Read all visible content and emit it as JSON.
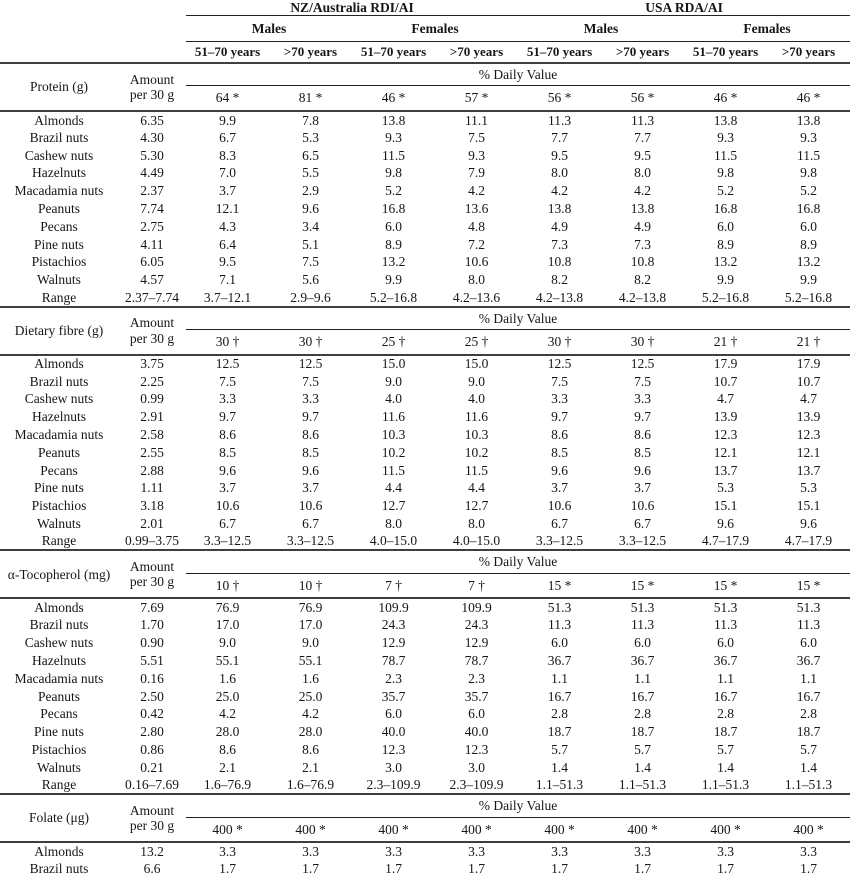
{
  "table": {
    "columns": {
      "amount_label": "Amount per 30 g",
      "daily_value_label": "% Daily Value"
    },
    "region_groups": [
      "NZ/Australia RDI/AI",
      "USA RDA/AI"
    ],
    "sex_groups": [
      "Males",
      "Females",
      "Males",
      "Females"
    ],
    "age_columns": [
      "51–70 years",
      ">70 years",
      "51–70 years",
      ">70 years",
      "51–70 years",
      ">70 years",
      "51–70 years",
      ">70 years"
    ],
    "sections": [
      {
        "nutrient": "Protein (g)",
        "reference_values": [
          "64 *",
          "81 *",
          "46 *",
          "57 *",
          "56 *",
          "56 *",
          "46 *",
          "46 *"
        ],
        "rows": [
          {
            "name": "Almonds",
            "amount": "6.35",
            "values": [
              "9.9",
              "7.8",
              "13.8",
              "11.1",
              "11.3",
              "11.3",
              "13.8",
              "13.8"
            ]
          },
          {
            "name": "Brazil nuts",
            "amount": "4.30",
            "values": [
              "6.7",
              "5.3",
              "9.3",
              "7.5",
              "7.7",
              "7.7",
              "9.3",
              "9.3"
            ]
          },
          {
            "name": "Cashew nuts",
            "amount": "5.30",
            "values": [
              "8.3",
              "6.5",
              "11.5",
              "9.3",
              "9.5",
              "9.5",
              "11.5",
              "11.5"
            ]
          },
          {
            "name": "Hazelnuts",
            "amount": "4.49",
            "values": [
              "7.0",
              "5.5",
              "9.8",
              "7.9",
              "8.0",
              "8.0",
              "9.8",
              "9.8"
            ]
          },
          {
            "name": "Macadamia nuts",
            "amount": "2.37",
            "values": [
              "3.7",
              "2.9",
              "5.2",
              "4.2",
              "4.2",
              "4.2",
              "5.2",
              "5.2"
            ]
          },
          {
            "name": "Peanuts",
            "amount": "7.74",
            "values": [
              "12.1",
              "9.6",
              "16.8",
              "13.6",
              "13.8",
              "13.8",
              "16.8",
              "16.8"
            ]
          },
          {
            "name": "Pecans",
            "amount": "2.75",
            "values": [
              "4.3",
              "3.4",
              "6.0",
              "4.8",
              "4.9",
              "4.9",
              "6.0",
              "6.0"
            ]
          },
          {
            "name": "Pine nuts",
            "amount": "4.11",
            "values": [
              "6.4",
              "5.1",
              "8.9",
              "7.2",
              "7.3",
              "7.3",
              "8.9",
              "8.9"
            ]
          },
          {
            "name": "Pistachios",
            "amount": "6.05",
            "values": [
              "9.5",
              "7.5",
              "13.2",
              "10.6",
              "10.8",
              "10.8",
              "13.2",
              "13.2"
            ]
          },
          {
            "name": "Walnuts",
            "amount": "4.57",
            "values": [
              "7.1",
              "5.6",
              "9.9",
              "8.0",
              "8.2",
              "8.2",
              "9.9",
              "9.9"
            ]
          },
          {
            "name": "Range",
            "amount": "2.37–7.74",
            "values": [
              "3.7–12.1",
              "2.9–9.6",
              "5.2–16.8",
              "4.2–13.6",
              "4.2–13.8",
              "4.2–13.8",
              "5.2–16.8",
              "5.2–16.8"
            ]
          }
        ]
      },
      {
        "nutrient": "Dietary fibre (g)",
        "reference_values": [
          "30 †",
          "30 †",
          "25 †",
          "25 †",
          "30 †",
          "30 †",
          "21 †",
          "21 †"
        ],
        "rows": [
          {
            "name": "Almonds",
            "amount": "3.75",
            "values": [
              "12.5",
              "12.5",
              "15.0",
              "15.0",
              "12.5",
              "12.5",
              "17.9",
              "17.9"
            ]
          },
          {
            "name": "Brazil nuts",
            "amount": "2.25",
            "values": [
              "7.5",
              "7.5",
              "9.0",
              "9.0",
              "7.5",
              "7.5",
              "10.7",
              "10.7"
            ]
          },
          {
            "name": "Cashew nuts",
            "amount": "0.99",
            "values": [
              "3.3",
              "3.3",
              "4.0",
              "4.0",
              "3.3",
              "3.3",
              "4.7",
              "4.7"
            ]
          },
          {
            "name": "Hazelnuts",
            "amount": "2.91",
            "values": [
              "9.7",
              "9.7",
              "11.6",
              "11.6",
              "9.7",
              "9.7",
              "13.9",
              "13.9"
            ]
          },
          {
            "name": "Macadamia nuts",
            "amount": "2.58",
            "values": [
              "8.6",
              "8.6",
              "10.3",
              "10.3",
              "8.6",
              "8.6",
              "12.3",
              "12.3"
            ]
          },
          {
            "name": "Peanuts",
            "amount": "2.55",
            "values": [
              "8.5",
              "8.5",
              "10.2",
              "10.2",
              "8.5",
              "8.5",
              "12.1",
              "12.1"
            ]
          },
          {
            "name": "Pecans",
            "amount": "2.88",
            "values": [
              "9.6",
              "9.6",
              "11.5",
              "11.5",
              "9.6",
              "9.6",
              "13.7",
              "13.7"
            ]
          },
          {
            "name": "Pine nuts",
            "amount": "1.11",
            "values": [
              "3.7",
              "3.7",
              "4.4",
              "4.4",
              "3.7",
              "3.7",
              "5.3",
              "5.3"
            ]
          },
          {
            "name": "Pistachios",
            "amount": "3.18",
            "values": [
              "10.6",
              "10.6",
              "12.7",
              "12.7",
              "10.6",
              "10.6",
              "15.1",
              "15.1"
            ]
          },
          {
            "name": "Walnuts",
            "amount": "2.01",
            "values": [
              "6.7",
              "6.7",
              "8.0",
              "8.0",
              "6.7",
              "6.7",
              "9.6",
              "9.6"
            ]
          },
          {
            "name": "Range",
            "amount": "0.99–3.75",
            "values": [
              "3.3–12.5",
              "3.3–12.5",
              "4.0–15.0",
              "4.0–15.0",
              "3.3–12.5",
              "3.3–12.5",
              "4.7–17.9",
              "4.7–17.9"
            ]
          }
        ]
      },
      {
        "nutrient": "α-Tocopherol (mg)",
        "reference_values": [
          "10 †",
          "10 †",
          "7 †",
          "7 †",
          "15 *",
          "15 *",
          "15 *",
          "15 *"
        ],
        "rows": [
          {
            "name": "Almonds",
            "amount": "7.69",
            "values": [
              "76.9",
              "76.9",
              "109.9",
              "109.9",
              "51.3",
              "51.3",
              "51.3",
              "51.3"
            ]
          },
          {
            "name": "Brazil nuts",
            "amount": "1.70",
            "values": [
              "17.0",
              "17.0",
              "24.3",
              "24.3",
              "11.3",
              "11.3",
              "11.3",
              "11.3"
            ]
          },
          {
            "name": "Cashew nuts",
            "amount": "0.90",
            "values": [
              "9.0",
              "9.0",
              "12.9",
              "12.9",
              "6.0",
              "6.0",
              "6.0",
              "6.0"
            ]
          },
          {
            "name": "Hazelnuts",
            "amount": "5.51",
            "values": [
              "55.1",
              "55.1",
              "78.7",
              "78.7",
              "36.7",
              "36.7",
              "36.7",
              "36.7"
            ]
          },
          {
            "name": "Macadamia nuts",
            "amount": "0.16",
            "values": [
              "1.6",
              "1.6",
              "2.3",
              "2.3",
              "1.1",
              "1.1",
              "1.1",
              "1.1"
            ]
          },
          {
            "name": "Peanuts",
            "amount": "2.50",
            "values": [
              "25.0",
              "25.0",
              "35.7",
              "35.7",
              "16.7",
              "16.7",
              "16.7",
              "16.7"
            ]
          },
          {
            "name": "Pecans",
            "amount": "0.42",
            "values": [
              "4.2",
              "4.2",
              "6.0",
              "6.0",
              "2.8",
              "2.8",
              "2.8",
              "2.8"
            ]
          },
          {
            "name": "Pine nuts",
            "amount": "2.80",
            "values": [
              "28.0",
              "28.0",
              "40.0",
              "40.0",
              "18.7",
              "18.7",
              "18.7",
              "18.7"
            ]
          },
          {
            "name": "Pistachios",
            "amount": "0.86",
            "values": [
              "8.6",
              "8.6",
              "12.3",
              "12.3",
              "5.7",
              "5.7",
              "5.7",
              "5.7"
            ]
          },
          {
            "name": "Walnuts",
            "amount": "0.21",
            "values": [
              "2.1",
              "2.1",
              "3.0",
              "3.0",
              "1.4",
              "1.4",
              "1.4",
              "1.4"
            ]
          },
          {
            "name": "Range",
            "amount": "0.16–7.69",
            "values": [
              "1.6–76.9",
              "1.6–76.9",
              "2.3–109.9",
              "2.3–109.9",
              "1.1–51.3",
              "1.1–51.3",
              "1.1–51.3",
              "1.1–51.3"
            ]
          }
        ]
      },
      {
        "nutrient": "Folate (μg)",
        "reference_values": [
          "400 *",
          "400 *",
          "400 *",
          "400 *",
          "400 *",
          "400 *",
          "400 *",
          "400 *"
        ],
        "rows": [
          {
            "name": "Almonds",
            "amount": "13.2",
            "values": [
              "3.3",
              "3.3",
              "3.3",
              "3.3",
              "3.3",
              "3.3",
              "3.3",
              "3.3"
            ]
          },
          {
            "name": "Brazil nuts",
            "amount": "6.6",
            "values": [
              "1.7",
              "1.7",
              "1.7",
              "1.7",
              "1.7",
              "1.7",
              "1.7",
              "1.7"
            ]
          }
        ]
      }
    ]
  }
}
